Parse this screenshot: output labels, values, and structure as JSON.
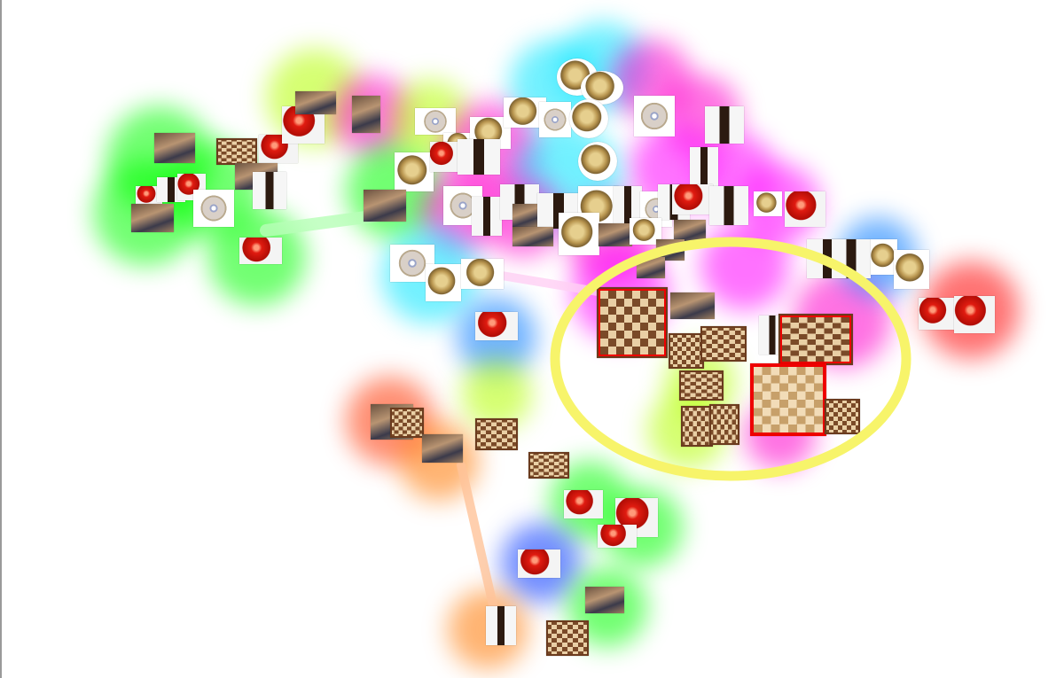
{
  "icons": {
    "board": "chessboard-icon",
    "tomato": "tomato-icon",
    "bottle": "wine-bottle-icon",
    "disc": "compact-disc-icon",
    "coin": "coin-icon",
    "people": "photo-icon",
    "sel": "chessboard-icon"
  },
  "colors": {
    "selection_lasso": "#f7f46a",
    "selected_border": "#ee0000",
    "cluster_palette": [
      "#00ff00",
      "#ff00cc",
      "#00e5ff",
      "#b4ff00",
      "#ff3300",
      "#ff7700",
      "#0033ff",
      "#ff0000",
      "#0077ff",
      "#ff00ff"
    ]
  }
}
